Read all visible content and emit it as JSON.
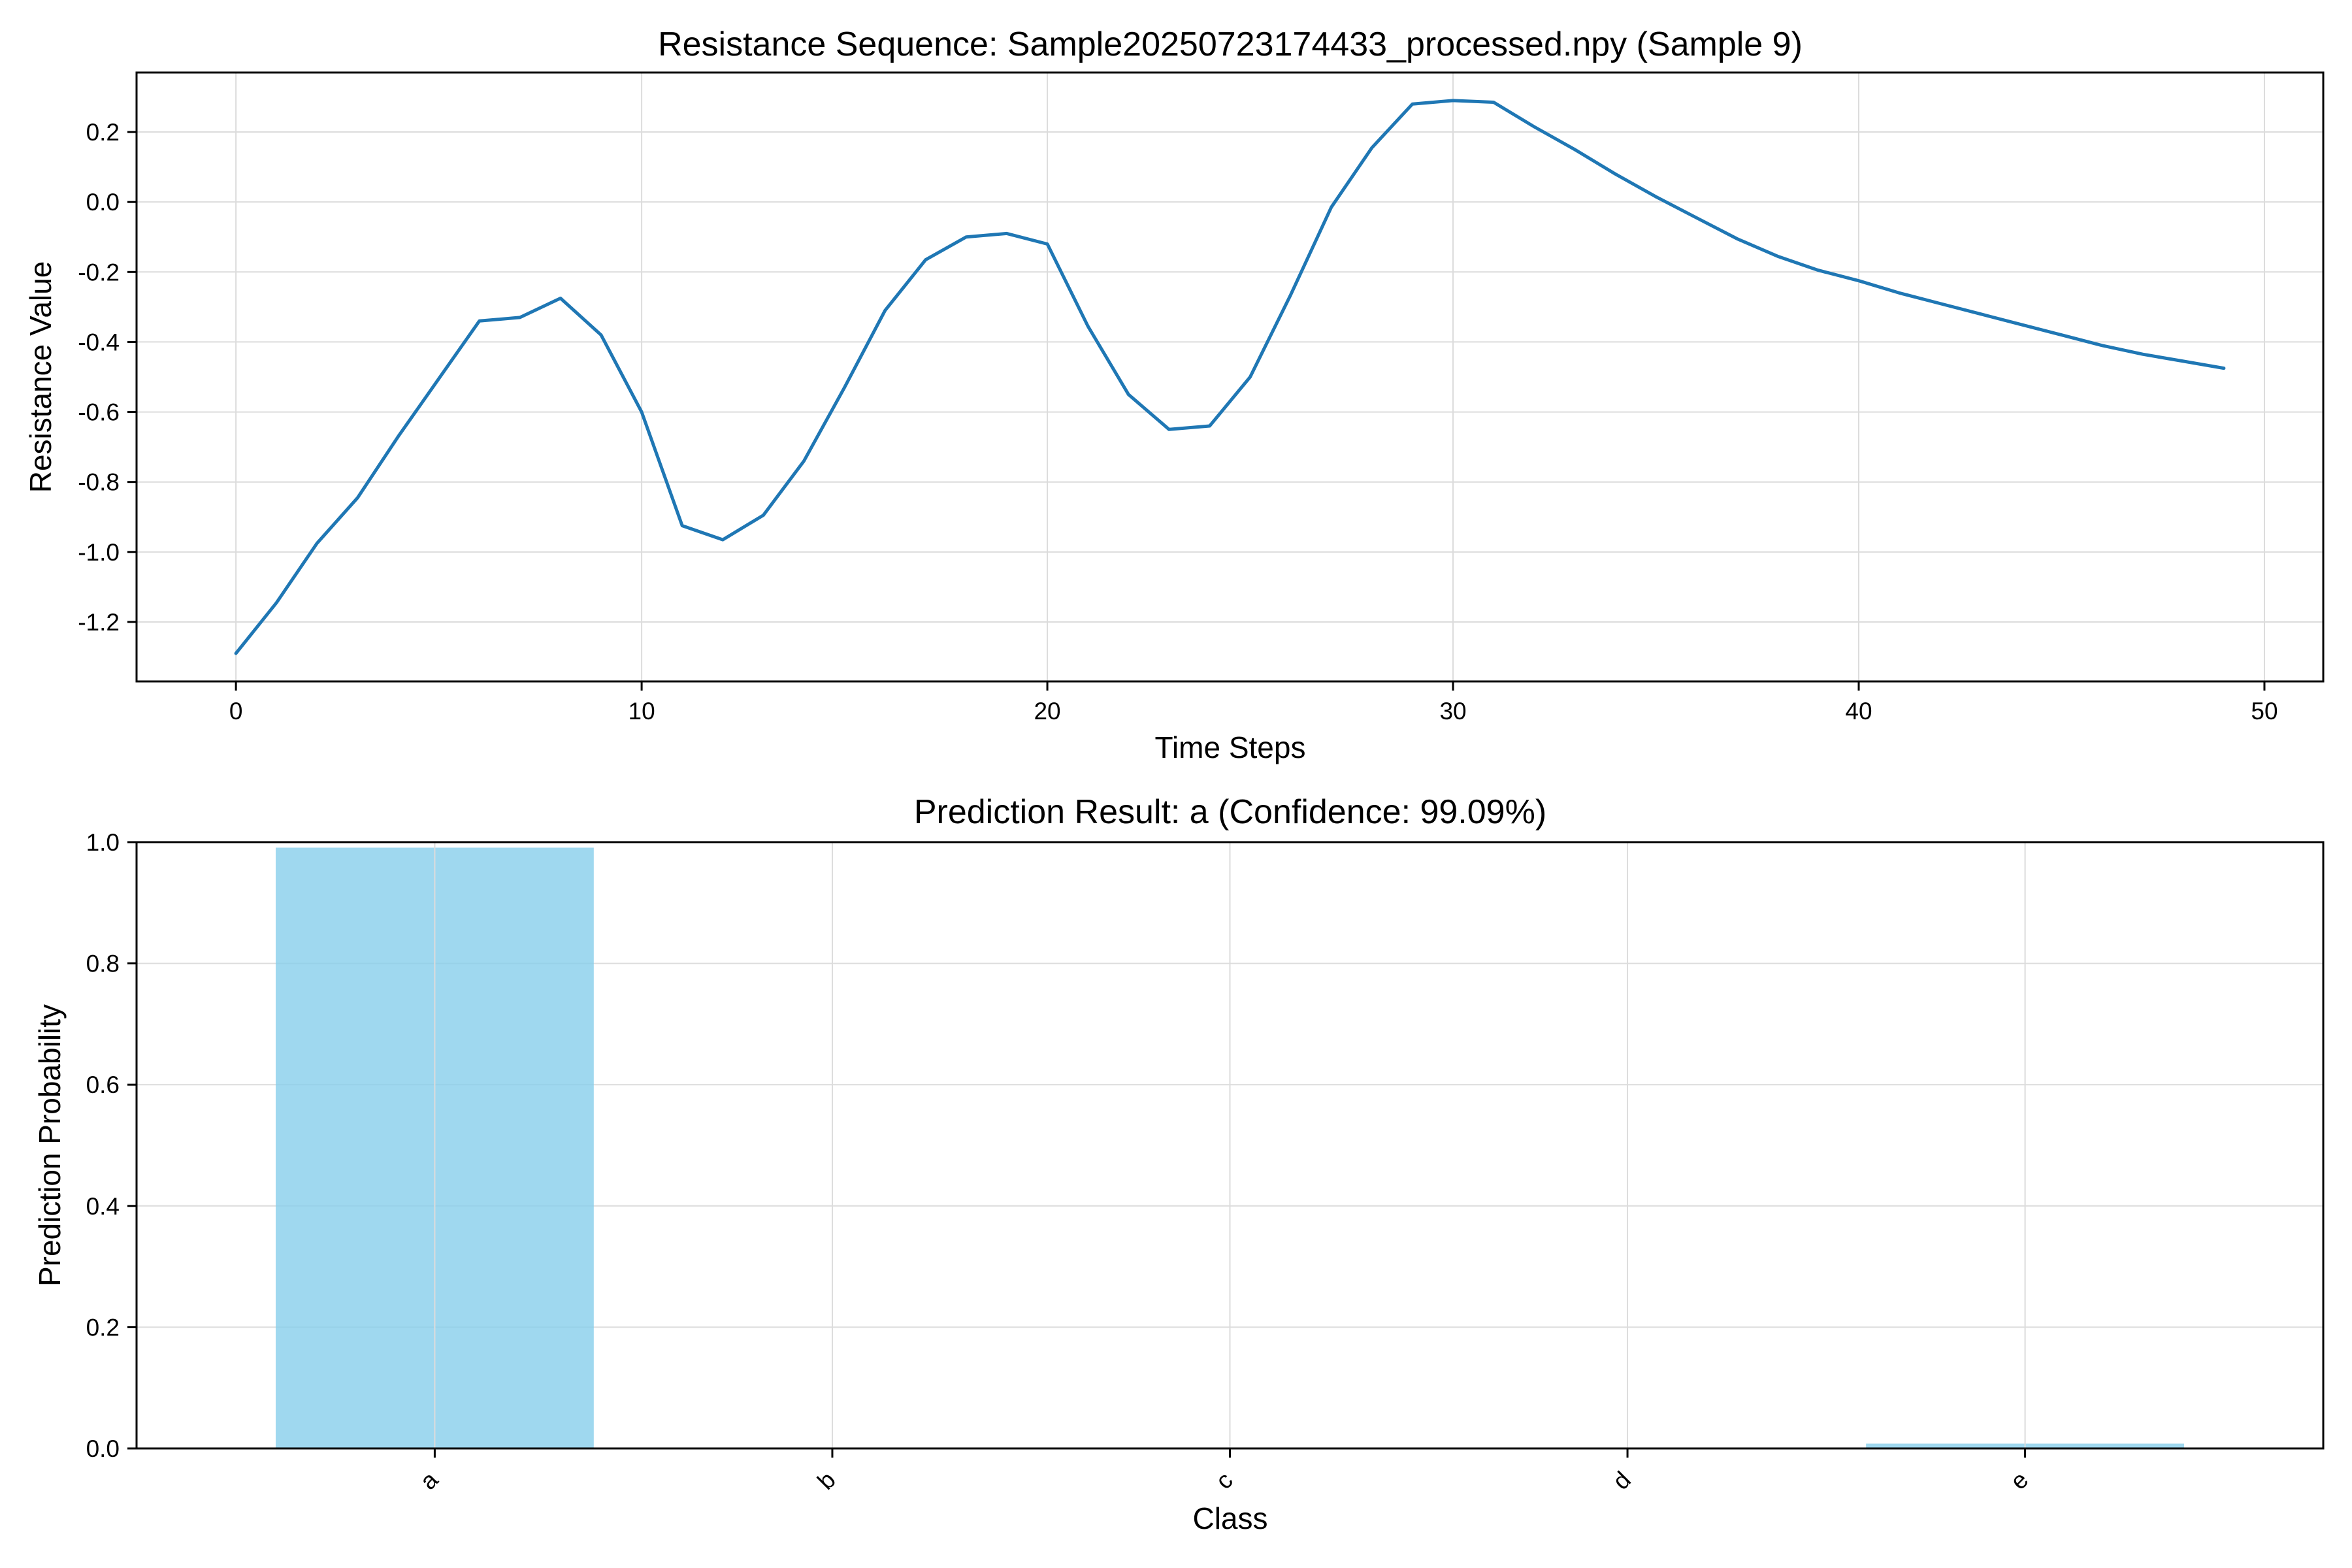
{
  "chart_data": [
    {
      "type": "line",
      "title": "Resistance Sequence: Sample20250723174433_processed.npy (Sample 9)",
      "xlabel": "Time Steps",
      "ylabel": "Resistance Value",
      "xlim": [
        -2.45,
        51.45
      ],
      "ylim": [
        -1.37,
        0.37
      ],
      "xticks": [
        0,
        10,
        20,
        30,
        40,
        50
      ],
      "yticks": [
        -1.2,
        -1.0,
        -0.8,
        -0.6,
        -0.4,
        -0.2,
        0.0,
        0.2
      ],
      "ytick_labels": [
        "-1.2",
        "-1.0",
        "-0.8",
        "-0.6",
        "-0.4",
        "-0.2",
        "0.0",
        "0.2"
      ],
      "grid": true,
      "color": "#1f77b4",
      "series": [
        {
          "x": [
            0,
            1,
            2,
            3,
            4,
            5,
            6,
            7,
            8,
            9,
            10,
            11,
            12,
            13,
            14,
            15,
            16,
            17,
            18,
            19,
            20,
            21,
            22,
            23,
            24,
            25,
            26,
            27,
            28,
            29,
            30,
            31,
            32,
            33,
            34,
            35,
            36,
            37,
            38,
            39,
            40,
            41,
            42,
            43,
            44,
            45,
            46,
            47,
            48,
            49
          ],
          "values": [
            -1.29,
            -1.145,
            -0.975,
            -0.845,
            -0.67,
            -0.505,
            -0.34,
            -0.33,
            -0.275,
            -0.38,
            -0.6,
            -0.925,
            -0.965,
            -0.895,
            -0.74,
            -0.53,
            -0.31,
            -0.165,
            -0.1,
            -0.09,
            -0.12,
            -0.355,
            -0.55,
            -0.65,
            -0.64,
            -0.5,
            -0.265,
            -0.015,
            0.155,
            0.28,
            0.29,
            0.285,
            0.215,
            0.15,
            0.08,
            0.015,
            -0.045,
            -0.105,
            -0.155,
            -0.195,
            -0.225,
            -0.26,
            -0.29,
            -0.32,
            -0.35,
            -0.38,
            -0.41,
            -0.435,
            -0.455,
            -0.475
          ]
        }
      ]
    },
    {
      "type": "bar",
      "title": "Prediction Result: a (Confidence: 99.09%)",
      "xlabel": "Class",
      "ylabel": "Prediction Probability",
      "categories": [
        "a",
        "b",
        "c",
        "d",
        "e"
      ],
      "values": [
        0.9909,
        0.0,
        0.0,
        0.0,
        0.008
      ],
      "ylim": [
        0,
        1.0
      ],
      "yticks": [
        0.0,
        0.2,
        0.4,
        0.6,
        0.8,
        1.0
      ],
      "ytick_labels": [
        "0.0",
        "0.2",
        "0.4",
        "0.6",
        "0.8",
        "1.0"
      ],
      "grid": true,
      "color": "#87ceeb"
    }
  ]
}
